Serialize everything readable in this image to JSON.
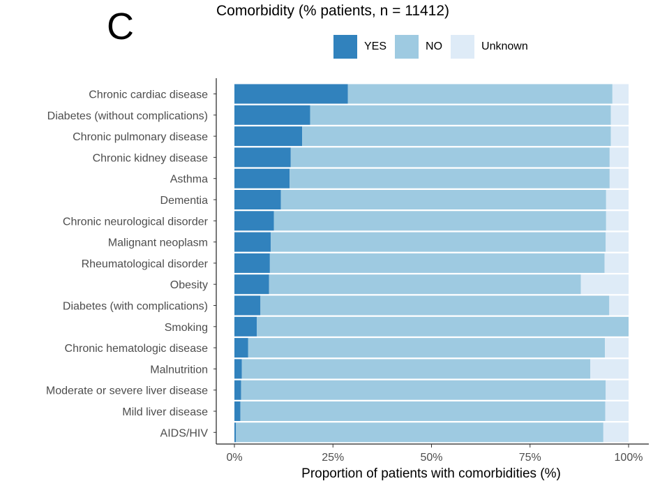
{
  "panel_label": "C",
  "chart_data": {
    "type": "bar",
    "orientation": "horizontal",
    "stacked": true,
    "title": "Comorbidity (% patients, n = 11412)",
    "xlabel": "Proportion of patients with comorbidities (%)",
    "ylabel": "",
    "xlim": [
      0,
      100
    ],
    "x_ticks": [
      {
        "value": 0,
        "label": "0%"
      },
      {
        "value": 25,
        "label": "25%"
      },
      {
        "value": 50,
        "label": "50%"
      },
      {
        "value": 75,
        "label": "75%"
      },
      {
        "value": 100,
        "label": "100%"
      }
    ],
    "legend_position": "top",
    "categories": [
      "Chronic cardiac disease",
      "Diabetes (without complications)",
      "Chronic pulmonary disease",
      "Chronic kidney disease",
      "Asthma",
      "Dementia",
      "Chronic neurological disorder",
      "Malignant neoplasm",
      "Rheumatological disorder",
      "Obesity",
      "Diabetes (with complications)",
      "Smoking",
      "Chronic hematologic disease",
      "Malnutrition",
      "Moderate or severe liver disease",
      "Mild liver disease",
      "AIDS/HIV"
    ],
    "series": [
      {
        "name": "YES",
        "color": "#3182bd",
        "values": [
          28.8,
          19.2,
          17.2,
          14.3,
          14.0,
          11.8,
          10.0,
          9.2,
          9.0,
          8.8,
          6.6,
          5.7,
          3.5,
          1.9,
          1.7,
          1.5,
          0.4
        ]
      },
      {
        "name": "NO",
        "color": "#9ecae1",
        "values": [
          67.1,
          76.3,
          78.3,
          80.9,
          81.2,
          82.5,
          84.3,
          85.0,
          84.9,
          79.1,
          88.5,
          94.3,
          90.5,
          88.4,
          92.5,
          92.6,
          93.2
        ]
      },
      {
        "name": "Unknown",
        "color": "#deebf7",
        "values": [
          4.1,
          4.5,
          4.5,
          4.8,
          4.8,
          5.7,
          5.7,
          5.8,
          6.1,
          12.1,
          4.9,
          0.0,
          6.0,
          9.7,
          5.8,
          5.9,
          6.4
        ]
      }
    ]
  }
}
